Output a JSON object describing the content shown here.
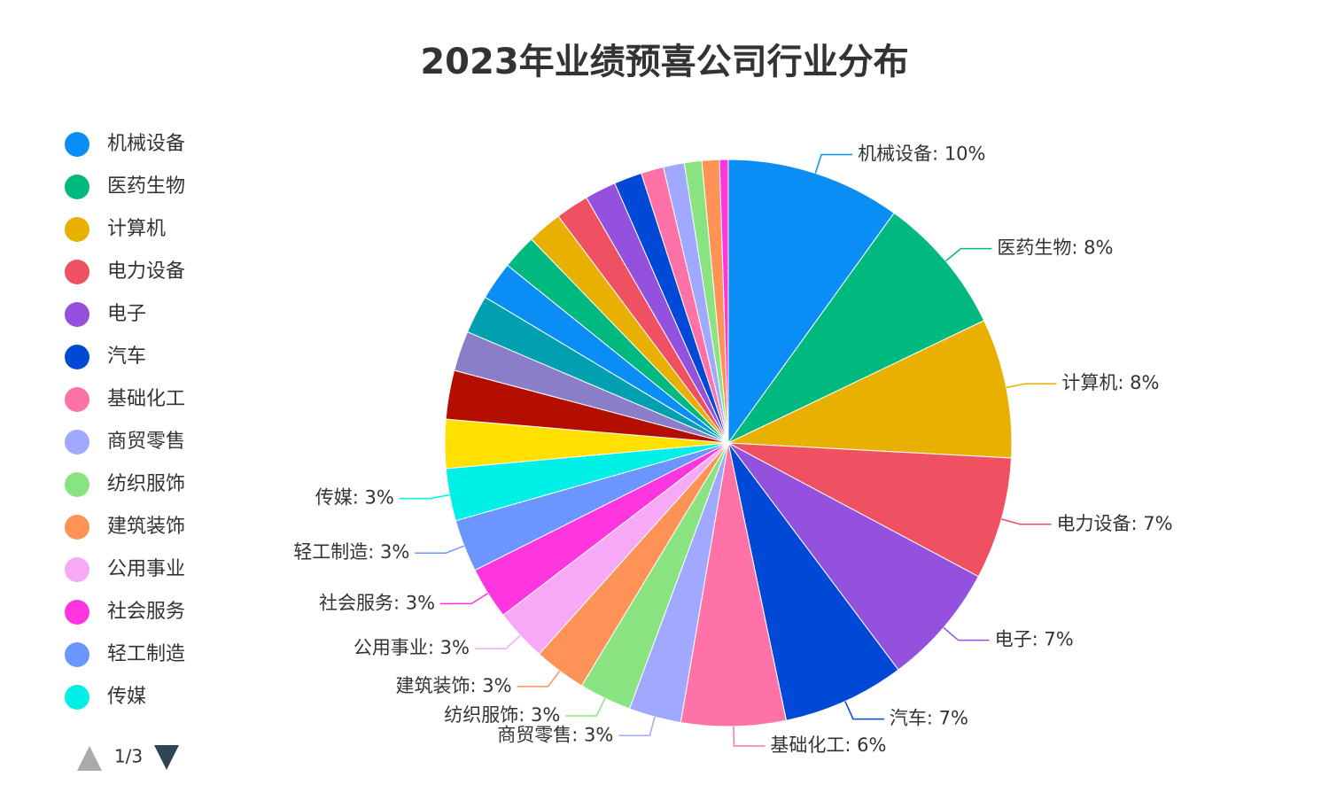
{
  "chart_data": {
    "type": "pie",
    "title": "2023年业绩预喜公司行业分布",
    "categories": [
      "机械设备",
      "医药生物",
      "计算机",
      "电力设备",
      "电子",
      "汽车",
      "基础化工",
      "商贸零售",
      "纺织服饰",
      "建筑装饰",
      "公用事业",
      "社会服务",
      "轻工制造",
      "传媒",
      null,
      null,
      null,
      null,
      null,
      null,
      null,
      null,
      null,
      null,
      null,
      null,
      null,
      null,
      null
    ],
    "values": [
      10,
      8,
      8,
      7,
      7,
      7,
      6,
      3,
      3,
      3,
      3,
      3,
      3,
      3,
      2.8,
      2.8,
      2.3,
      2.2,
      2.2,
      2,
      2,
      1.9,
      1.8,
      1.6,
      1.3,
      1.2,
      1,
      1,
      0.5
    ],
    "data_labels": [
      "机械设备: 10%",
      "医药生物: 8%",
      "计算机: 8%",
      "电力设备: 7%",
      "电子: 7%",
      "汽车: 7%",
      "基础化工: 6%",
      "商贸零售: 3%",
      "纺织服饰: 3%",
      "建筑装饰: 3%",
      "公用事业: 3%",
      "社会服务: 3%",
      "轻工制造: 3%",
      "传媒: 3%",
      null,
      null,
      null,
      null,
      null,
      null,
      null,
      null,
      null,
      null,
      null,
      null,
      null,
      null,
      null
    ],
    "colors": [
      "#0a8ef5",
      "#00b97e",
      "#e8b000",
      "#ef5062",
      "#9351de",
      "#0048d6",
      "#ff72a8",
      "#a0a8ff",
      "#89e381",
      "#ff9357",
      "#f7a8f7",
      "#ff36e0",
      "#6b96ff",
      "#00efe6",
      "#ffe000",
      "#b30e00",
      "#8b7ec8",
      "#00a0b0",
      "#0a8ef5",
      "#00b97e",
      "#e8b000",
      "#ef5062",
      "#9351de",
      "#0048d6",
      "#ff72a8",
      "#a0a8ff",
      "#89e381",
      "#ff9357",
      "#ff36e0"
    ],
    "legend_page": "1/3"
  }
}
